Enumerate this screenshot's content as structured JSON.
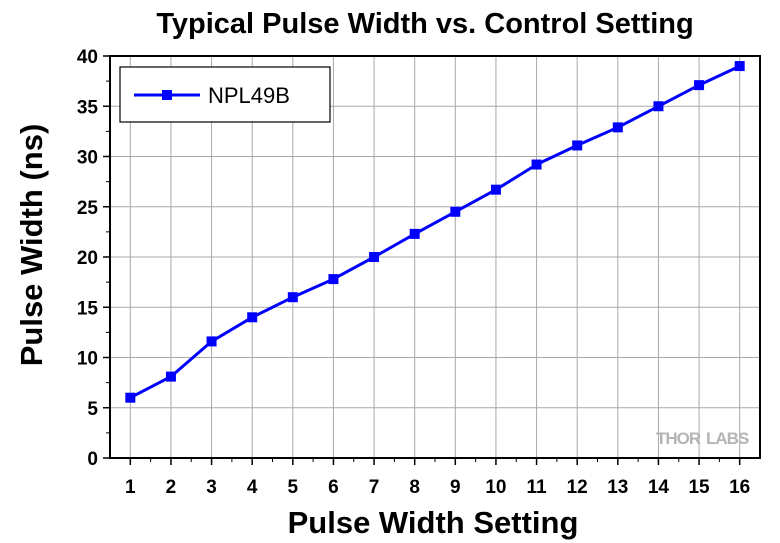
{
  "chart_data": {
    "type": "line",
    "title": "Typical Pulse Width vs. Control Setting",
    "xlabel": "Pulse Width Setting",
    "ylabel": "Pulse Width (ns)",
    "x": [
      1,
      2,
      3,
      4,
      5,
      6,
      7,
      8,
      9,
      10,
      11,
      12,
      13,
      14,
      15,
      16
    ],
    "series": [
      {
        "name": "NPL49B",
        "values": [
          6.0,
          8.1,
          11.6,
          14.0,
          16.0,
          17.8,
          20.0,
          22.3,
          24.5,
          26.7,
          29.2,
          31.1,
          32.9,
          35.0,
          37.1,
          39.0
        ],
        "color": "#0000ff",
        "marker": "square"
      }
    ],
    "xlim": [
      0.5,
      16.5
    ],
    "ylim": [
      0,
      40
    ],
    "xticks": [
      "1",
      "2",
      "3",
      "4",
      "5",
      "6",
      "7",
      "8",
      "9",
      "10",
      "11",
      "12",
      "13",
      "14",
      "15",
      "16"
    ],
    "yticks": [
      "0",
      "5",
      "10",
      "15",
      "20",
      "25",
      "30",
      "35",
      "40"
    ],
    "grid": true,
    "legend_position": "top-left"
  },
  "watermark": {
    "text_thor": "THOR",
    "text_labs": "LABS"
  }
}
